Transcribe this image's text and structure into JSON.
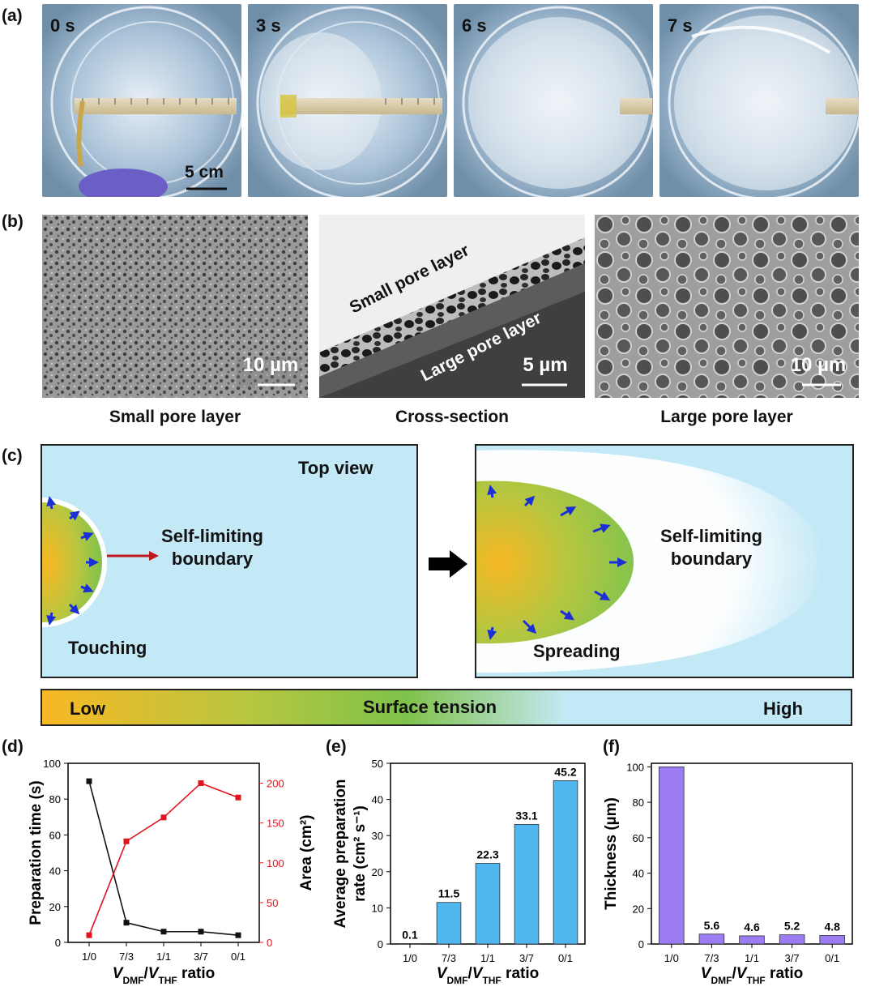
{
  "panel_labels": [
    "(a)",
    "(b)",
    "(c)",
    "(d)",
    "(e)",
    "(f)"
  ],
  "panel_a": {
    "times": [
      "0 s",
      "3 s",
      "6 s",
      "7 s"
    ],
    "scale_bar": "5 cm"
  },
  "panel_b": {
    "scale_small": "10 µm",
    "scale_cross": "5 µm",
    "scale_large": "10 µm",
    "cross_small_label": "Small pore layer",
    "cross_large_label": "Large pore layer",
    "captions": [
      "Small pore layer",
      "Cross-section",
      "Large pore layer"
    ]
  },
  "panel_c": {
    "top_view": "Top view",
    "boundary_left": "Self-limiting\nboundary",
    "boundary_right": "Self-limiting\nboundary",
    "touching": "Touching",
    "spreading": "Spreading",
    "bar_low": "Low",
    "bar_mid": "Surface tension",
    "bar_high": "High",
    "colors": {
      "water": "#c4e9f6",
      "low": "#f8b824",
      "mid": "#7fc24a",
      "arrow_red": "#c0181f",
      "arrow_blue": "#1b2fd6"
    }
  },
  "chart_data": [
    {
      "type": "line",
      "panel": "(d)",
      "categories": [
        "1/0",
        "7/3",
        "1/1",
        "3/7",
        "0/1"
      ],
      "series": [
        {
          "name": "Preparation time (s)",
          "axis": "left",
          "color": "#111111",
          "values": [
            90,
            11,
            6,
            6,
            4
          ]
        },
        {
          "name": "Area (cm²)",
          "axis": "right",
          "color": "#e0141e",
          "values": [
            9,
            127,
            157,
            200,
            182
          ]
        }
      ],
      "ylabel": "Preparation time (s)",
      "ylabel_right": "Area (cm²)",
      "xlabel_parts": [
        "V",
        "DMF",
        "/",
        "V",
        "THF",
        " ratio"
      ],
      "ylim": [
        0,
        100
      ],
      "ylim_right": [
        0,
        225
      ],
      "yticks": [
        "0",
        "20",
        "40",
        "60",
        "80",
        "100"
      ],
      "yticks_right": [
        "0",
        "50",
        "100",
        "150",
        "200"
      ]
    },
    {
      "type": "bar",
      "panel": "(e)",
      "categories": [
        "1/0",
        "7/3",
        "1/1",
        "3/7",
        "0/1"
      ],
      "values": [
        0.1,
        11.5,
        22.3,
        33.1,
        45.2
      ],
      "labels": [
        "0.1",
        "11.5",
        "22.3",
        "33.1",
        "45.2"
      ],
      "color": "#4fb6ef",
      "ylabel_line1": "Average preparation",
      "ylabel_line2": "rate (cm² s⁻¹)",
      "xlabel_parts": [
        "V",
        "DMF",
        "/",
        "V",
        "THF",
        " ratio"
      ],
      "ylim": [
        0,
        50
      ],
      "yticks": [
        "0",
        "10",
        "20",
        "30",
        "40",
        "50"
      ]
    },
    {
      "type": "bar",
      "panel": "(f)",
      "categories": [
        "1/0",
        "7/3",
        "1/1",
        "3/7",
        "0/1"
      ],
      "values": [
        100,
        5.6,
        4.6,
        5.2,
        4.8
      ],
      "labels": [
        "",
        "5.6",
        "4.6",
        "5.2",
        "4.8"
      ],
      "color": "#9b7cf3",
      "ylabel": "Thickness (µm)",
      "xlabel_parts": [
        "V",
        "DMF",
        "/",
        "V",
        "THF",
        " ratio"
      ],
      "ylim": [
        0,
        102
      ],
      "yticks": [
        "0",
        "20",
        "40",
        "60",
        "80",
        "100"
      ]
    }
  ]
}
